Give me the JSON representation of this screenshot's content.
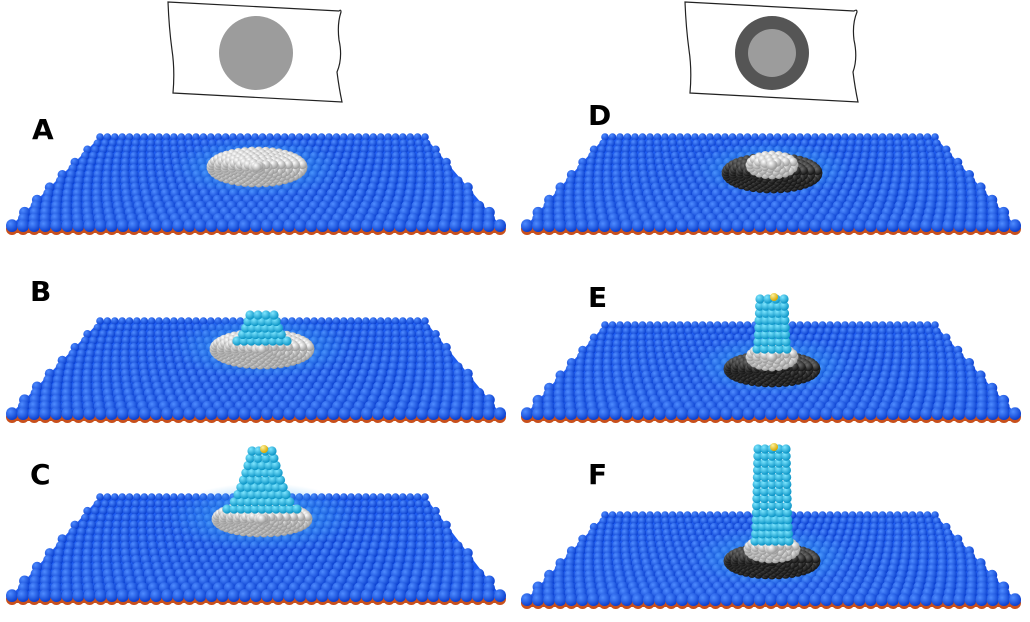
{
  "panels": {
    "a": {
      "label": "A"
    },
    "b": {
      "label": "B"
    },
    "c": {
      "label": "C"
    },
    "d": {
      "label": "D"
    },
    "e": {
      "label": "E"
    },
    "f": {
      "label": "F"
    }
  },
  "colors": {
    "membrane_blue": "#1e5cf0",
    "membrane_light": "#3aa8f5",
    "membrane_underside": "#c8501c",
    "bud_cyan": "#22c6ee",
    "patch_white": "#d8d8d8",
    "patch_dark": "#3a3a3a",
    "tip_yellow": "#ffd21a",
    "schematic_light_gray": "#9c9c9c",
    "schematic_dark_gray": "#555555"
  },
  "schematics": {
    "left": {
      "depicts": "uniform-gray-disc"
    },
    "right": {
      "depicts": "dark-ring-with-light-core"
    }
  }
}
